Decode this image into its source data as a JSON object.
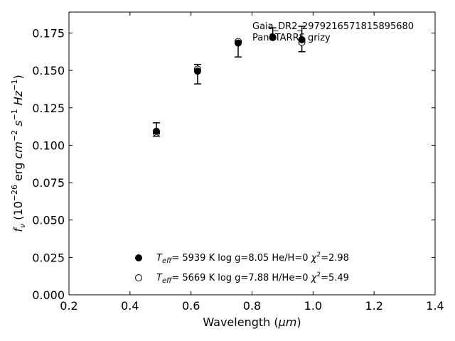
{
  "chart_data": {
    "type": "scatter",
    "title": "",
    "xlabel_main": "Wavelength (",
    "xlabel_unit": "μm",
    "xlabel_close": ")",
    "ylabel_f": "f",
    "ylabel_sub": "ν",
    "ylabel_open": " (10",
    "ylabel_exp1": "−26",
    "ylabel_erg": " erg ",
    "ylabel_cm": "cm",
    "ylabel_exp2": "−2",
    "ylabel_s": " s",
    "ylabel_exp3": "−1",
    "ylabel_hz": " Hz",
    "ylabel_exp4": "−1",
    "ylabel_close": ")",
    "xlim": [
      0.2,
      1.4
    ],
    "ylim": [
      0.0,
      0.189
    ],
    "xticks": [
      0.2,
      0.4,
      0.6,
      0.8,
      1.0,
      1.2,
      1.4
    ],
    "xtick_labels": [
      "0.2",
      "0.4",
      "0.6",
      "0.8",
      "1.0",
      "1.2",
      "1.4"
    ],
    "yticks": [
      0.0,
      0.025,
      0.05,
      0.075,
      0.1,
      0.125,
      0.15,
      0.175
    ],
    "ytick_labels": [
      "0.000",
      "0.025",
      "0.050",
      "0.075",
      "0.100",
      "0.125",
      "0.150",
      "0.175"
    ],
    "grid": false,
    "legend_position": "bottom-center",
    "annotation": {
      "line1": "Gaia_DR2_2979216571815895680",
      "line2": "PanSTARRS grizy"
    },
    "observed": {
      "x": [
        0.4866,
        0.6215,
        0.7545,
        0.8679,
        0.9633
      ],
      "y": [
        0.1105,
        0.1475,
        0.1645,
        0.175,
        0.171
      ],
      "yerr": [
        0.0045,
        0.0065,
        0.0055,
        0.0035,
        0.0085
      ]
    },
    "series": [
      {
        "marker": "filled",
        "teff_symbol": "T",
        "teff_sub": "eff",
        "text": "=  5939 K  log g=8.05  He/H=0  ",
        "chi_symbol": "χ",
        "chi_exp": "2",
        "chi_text": "=2.98",
        "x": [
          0.4866,
          0.6215,
          0.7545,
          0.8679,
          0.9633
        ],
        "y": [
          0.1093,
          0.1495,
          0.1683,
          0.172,
          0.1705
        ]
      },
      {
        "marker": "open",
        "teff_symbol": "T",
        "teff_sub": "eff",
        "text": "=  5669 K  log g=7.88  H/He=0  ",
        "chi_symbol": "χ",
        "chi_exp": "2",
        "chi_text": "=5.49",
        "x": [
          0.4866,
          0.6215,
          0.7545,
          0.8679,
          0.9633
        ],
        "y": [
          0.1083,
          0.1508,
          0.1693,
          0.1722,
          0.1688
        ]
      }
    ]
  }
}
